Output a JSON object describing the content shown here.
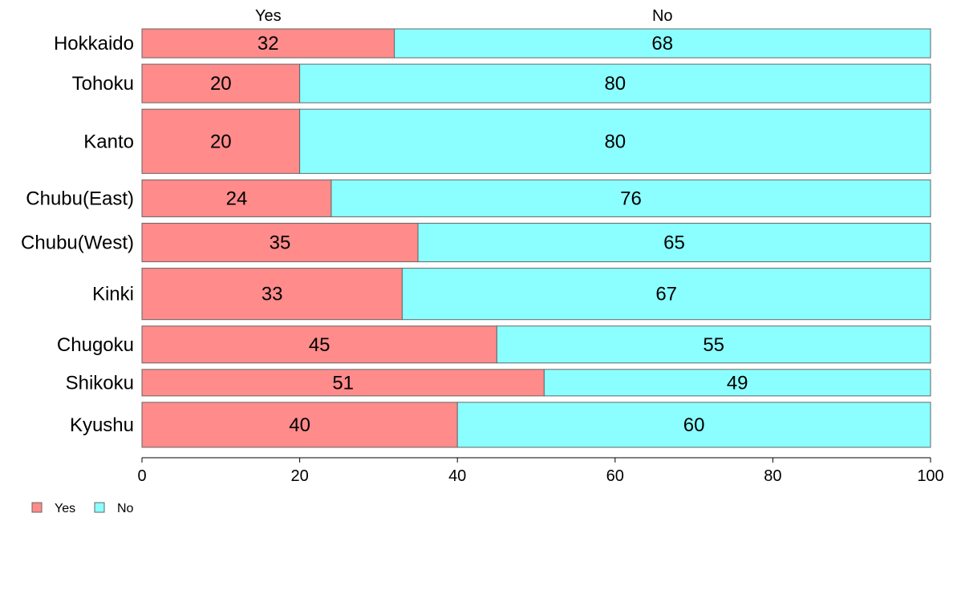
{
  "chart_data": {
    "type": "bar",
    "orientation": "horizontal",
    "stacked": true,
    "proportional_height": true,
    "categories": [
      "Hokkaido",
      "Tohoku",
      "Kanto",
      "Chubu(East)",
      "Chubu(West)",
      "Kinki",
      "Chugoku",
      "Shikoku",
      "Kyushu"
    ],
    "series": [
      {
        "name": "Yes",
        "color": "#FF8B8B",
        "values": [
          32,
          20,
          20,
          24,
          35,
          33,
          45,
          51,
          40
        ]
      },
      {
        "name": "No",
        "color": "#8BFFFF",
        "values": [
          68,
          80,
          80,
          76,
          65,
          67,
          55,
          49,
          60
        ]
      }
    ],
    "xlim": [
      0,
      100
    ],
    "xticks": [
      0,
      20,
      40,
      60,
      80,
      100
    ],
    "top_labels": [
      {
        "text": "Yes",
        "x": 16
      },
      {
        "text": "No",
        "x": 66
      }
    ],
    "legend": {
      "position": "bottom-left",
      "entries": [
        "Yes",
        "No"
      ]
    },
    "grid": false,
    "title": "",
    "xlabel": "",
    "ylabel": ""
  }
}
